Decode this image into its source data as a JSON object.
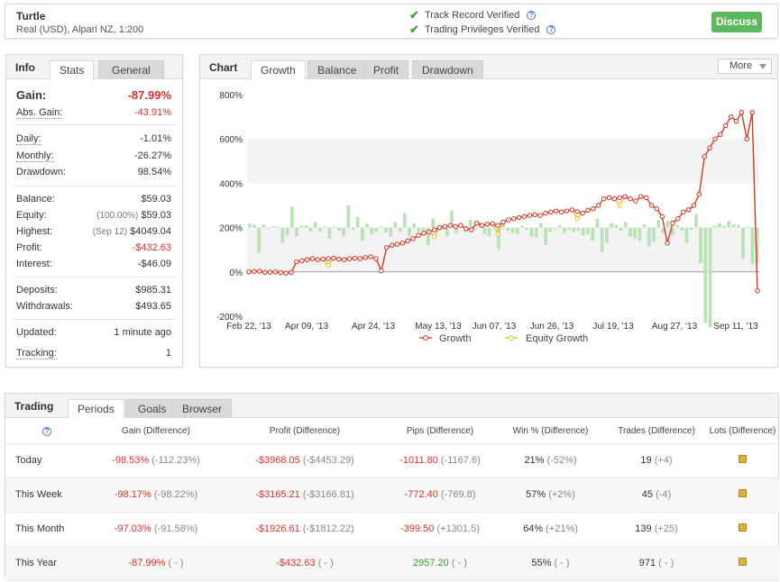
{
  "header": {
    "account_name": "Turtle",
    "account_sub": "Real (USD), Alpari NZ, 1:200",
    "track_record": "Track Record Verified",
    "trading_privileges": "Trading Privileges Verified",
    "discuss_label": "Discuss"
  },
  "info": {
    "title": "Info",
    "tabs": [
      "Stats",
      "General"
    ],
    "gain_label": "Gain:",
    "gain_value": "-87.99%",
    "abs_gain_label": "Abs. Gain:",
    "abs_gain_value": "-43.91%",
    "daily_label": "Daily:",
    "daily_value": "-1.01%",
    "monthly_label": "Monthly:",
    "monthly_value": "-26.27%",
    "drawdown_label": "Drawdown:",
    "drawdown_value": "98.54%",
    "balance_label": "Balance:",
    "balance_value": "$59.03",
    "equity_label": "Equity:",
    "equity_pct": "(100.00%)",
    "equity_value": "$59.03",
    "highest_label": "Highest:",
    "highest_date": "(Sep 12)",
    "highest_value": "$4049.04",
    "profit_label": "Profit:",
    "profit_value": "-$432.63",
    "interest_label": "Interest:",
    "interest_value": "-$46.09",
    "deposits_label": "Deposits:",
    "deposits_value": "$985.31",
    "withdrawals_label": "Withdrawals:",
    "withdrawals_value": "$493.65",
    "updated_label": "Updated:",
    "updated_value": "1 minute ago",
    "tracking_label": "Tracking:",
    "tracking_value": "1"
  },
  "chart_panel": {
    "title": "Chart",
    "tabs": [
      "Growth",
      "Balance",
      "Profit",
      "Drawdown"
    ],
    "more_label": "More"
  },
  "chart_data": {
    "type": "line",
    "y_ticks": [
      "800%",
      "600%",
      "400%",
      "200%",
      "0%",
      "-200%"
    ],
    "ylim": [
      -200,
      800
    ],
    "x_ticks": [
      "Feb 22, '13",
      "Apr 09, '13",
      "Apr 24, '13",
      "May 13, '13",
      "Jun 07, '13",
      "Jun 26, '13",
      "Jul 19, '13",
      "Aug 27, '13",
      "Sep 11, '13"
    ],
    "legend": [
      "Growth",
      "Equity Growth"
    ],
    "series": [
      {
        "name": "Growth",
        "color": "#d6322c",
        "values": [
          0,
          2,
          3,
          -2,
          -1,
          0,
          -3,
          -5,
          -2,
          45,
          50,
          55,
          60,
          55,
          58,
          60,
          62,
          58,
          55,
          60,
          62,
          60,
          65,
          68,
          60,
          5,
          110,
          120,
          125,
          130,
          140,
          150,
          165,
          175,
          180,
          190,
          200,
          205,
          210,
          205,
          210,
          195,
          190,
          220,
          210,
          215,
          218,
          210,
          225,
          235,
          240,
          245,
          250,
          255,
          258,
          255,
          265,
          270,
          275,
          270,
          275,
          280,
          272,
          265,
          278,
          285,
          300,
          330,
          335,
          330,
          335,
          340,
          330,
          320,
          340,
          335,
          300,
          285,
          250,
          130,
          220,
          240,
          270,
          280,
          300,
          350,
          520,
          560,
          600,
          620,
          660,
          700,
          680,
          720,
          600,
          720,
          -85
        ]
      },
      {
        "name": "Equity Growth",
        "color": "#e8c21a",
        "values": [
          0,
          2,
          3,
          -2,
          -1,
          0,
          -3,
          -5,
          -2,
          45,
          50,
          55,
          60,
          55,
          58,
          30,
          62,
          58,
          55,
          60,
          62,
          60,
          65,
          68,
          60,
          5,
          110,
          120,
          125,
          130,
          140,
          150,
          165,
          175,
          180,
          160,
          200,
          205,
          210,
          205,
          210,
          195,
          190,
          220,
          210,
          215,
          218,
          170,
          225,
          235,
          240,
          245,
          250,
          255,
          258,
          255,
          265,
          270,
          275,
          270,
          275,
          280,
          240,
          265,
          278,
          285,
          300,
          330,
          335,
          330,
          300,
          340,
          330,
          320,
          340,
          335,
          300,
          285,
          250,
          130,
          220,
          240,
          270,
          280,
          300,
          350,
          520,
          560,
          600,
          620,
          660,
          700,
          680,
          720,
          600,
          720,
          -85
        ]
      }
    ],
    "bars": [
      18,
      12,
      -115,
      14,
      0,
      6,
      4,
      -70,
      -35,
      95,
      -40,
      8,
      10,
      -18,
      25,
      -20,
      6,
      -50,
      4,
      -15,
      -40,
      100,
      -10,
      48,
      -60,
      18,
      -30,
      -20,
      5,
      -22,
      -40,
      25,
      -18,
      65,
      -40,
      20,
      -20,
      -35,
      -80,
      40,
      -15,
      -10,
      -40,
      75,
      -25,
      5,
      -20,
      35,
      -10,
      25,
      -30,
      -40,
      10,
      -100,
      30,
      -15,
      -25,
      -30,
      8,
      -10,
      -40,
      -45,
      20,
      -80,
      -20,
      -5,
      10,
      -25,
      -10,
      -20,
      -15,
      -35,
      -30,
      -60,
      40,
      -110,
      -70,
      20,
      12,
      -15,
      25,
      -40,
      -50,
      -60,
      15,
      -85,
      -65,
      35,
      -25,
      30,
      -35,
      12,
      -15,
      -70,
      -10,
      60,
      -160,
      -430,
      -450,
      10,
      20,
      8,
      30,
      15,
      12,
      -140,
      5,
      -165,
      -160
    ]
  },
  "trading": {
    "title": "Trading",
    "tabs": [
      "Periods",
      "Goals",
      "Browser"
    ],
    "headers": [
      "Gain (Difference)",
      "Profit (Difference)",
      "Pips (Difference)",
      "Win % (Difference)",
      "Trades (Difference)",
      "Lots (Difference)"
    ],
    "rows": [
      {
        "label": "Today",
        "gain": "-98.53%",
        "gain_diff": "(-112.23%)",
        "profit": "-$3968.05",
        "profit_diff": "(-$4453.29)",
        "pips": "-1011.80",
        "pips_diff": "(-1167.6)",
        "win": "21%",
        "win_diff": "(-52%)",
        "trades": "19",
        "trades_diff": "(+4)"
      },
      {
        "label": "This Week",
        "gain": "-98.17%",
        "gain_diff": "(-98.22%)",
        "profit": "-$3165.21",
        "profit_diff": "(-$3166.81)",
        "pips": "-772.40",
        "pips_diff": "(-769.8)",
        "win": "57%",
        "win_diff": "(+2%)",
        "trades": "45",
        "trades_diff": "(-4)"
      },
      {
        "label": "This Month",
        "gain": "-97.03%",
        "gain_diff": "(-91.58%)",
        "profit": "-$1926.61",
        "profit_diff": "(-$1812.22)",
        "pips": "-399.50",
        "pips_diff": "(+1301.5)",
        "win": "64%",
        "win_diff": "(+21%)",
        "trades": "139",
        "trades_diff": "(+25)"
      },
      {
        "label": "This Year",
        "gain": "-87.99%",
        "gain_diff": "( - )",
        "profit": "-$432.63",
        "profit_diff": "( - )",
        "pips": "2957.20",
        "pips_diff": "( - )",
        "win": "55%",
        "win_diff": "( - )",
        "trades": "971",
        "trades_diff": "( - )"
      }
    ]
  },
  "colors": {
    "accent_green": "#5cb85c",
    "negative": "#d6322c",
    "positive": "#3a9a3a",
    "bar_green": "#b7e3b5"
  }
}
